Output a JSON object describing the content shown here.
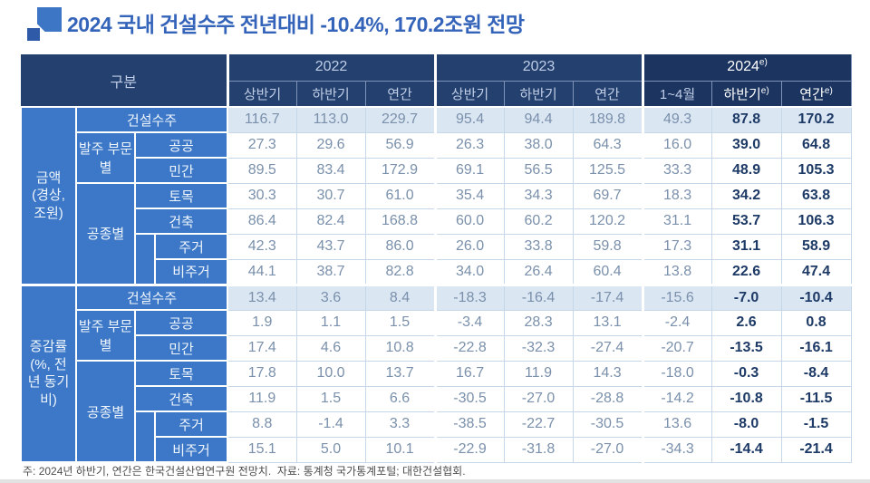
{
  "title": "2024 국내 건설수주 전년대비 -10.4%, 170.2조원 전망",
  "footnote": "주: 2024년 하반기, 연간은 한국건설산업연구원 전망치.  자료: 통계청 국가통계포털; 대한건설협회.",
  "colors": {
    "title_blue": "#3463BA",
    "header_navy": "#24406E",
    "header_navy_2024": "#1B3460",
    "label_blue": "#3C78C7",
    "summary_row_bg": "#DBE6F3",
    "value_text": "#7A90AB",
    "bold_value_text": "#1D3A66"
  },
  "chart_data": {
    "type": "table",
    "title": "2024 국내 건설수주 전년대비 -10.4%, 170.2조원 전망",
    "units": "금액: 경상, 조원 / 증감률: %, 전년동기비",
    "header": {
      "corner": "구분",
      "year_groups": [
        {
          "label": "2022",
          "sup": "",
          "subcols": [
            {
              "label": "상반기",
              "sup": ""
            },
            {
              "label": "하반기",
              "sup": ""
            },
            {
              "label": "연간",
              "sup": ""
            }
          ]
        },
        {
          "label": "2023",
          "sup": "",
          "subcols": [
            {
              "label": "상반기",
              "sup": ""
            },
            {
              "label": "하반기",
              "sup": ""
            },
            {
              "label": "연간",
              "sup": ""
            }
          ]
        },
        {
          "label": "2024",
          "sup": "e)",
          "subcols": [
            {
              "label": "1~4월",
              "sup": ""
            },
            {
              "label": "하반기",
              "sup": "e)"
            },
            {
              "label": "연간",
              "sup": "e)"
            }
          ]
        }
      ]
    },
    "sections": [
      {
        "group_label": "금액 (경상, 조원)",
        "rows": [
          {
            "label": "건설수주",
            "indent": false,
            "values": [
              "116.7",
              "113.0",
              "229.7",
              "95.4",
              "94.4",
              "189.8",
              "49.3",
              "87.8",
              "170.2"
            ]
          },
          {
            "parent": "발주 부문별",
            "parent_rowspan": 2,
            "label": "공공",
            "indent": false,
            "values": [
              "27.3",
              "29.6",
              "56.9",
              "26.3",
              "38.0",
              "64.3",
              "16.0",
              "39.0",
              "64.8"
            ]
          },
          {
            "label": "민간",
            "indent": false,
            "values": [
              "89.5",
              "83.4",
              "172.9",
              "69.1",
              "56.5",
              "125.5",
              "33.3",
              "48.9",
              "105.3"
            ]
          },
          {
            "parent": "공종별",
            "parent_rowspan": 4,
            "label": "토목",
            "indent": false,
            "values": [
              "30.3",
              "30.7",
              "61.0",
              "35.4",
              "34.3",
              "69.7",
              "18.3",
              "34.2",
              "63.8"
            ]
          },
          {
            "label": "건축",
            "indent": false,
            "values": [
              "86.4",
              "82.4",
              "168.8",
              "60.0",
              "60.2",
              "120.2",
              "31.1",
              "53.7",
              "106.3"
            ]
          },
          {
            "label": "주거",
            "indent": true,
            "values": [
              "42.3",
              "43.7",
              "86.0",
              "26.0",
              "33.8",
              "59.8",
              "17.3",
              "31.1",
              "58.9"
            ]
          },
          {
            "label": "비주거",
            "indent": true,
            "values": [
              "44.1",
              "38.7",
              "82.8",
              "34.0",
              "26.4",
              "60.4",
              "13.8",
              "22.6",
              "47.4"
            ]
          }
        ]
      },
      {
        "group_label": "증감률 (%, 전년 동기비)",
        "rows": [
          {
            "label": "건설수주",
            "indent": false,
            "values": [
              "13.4",
              "3.6",
              "8.4",
              "-18.3",
              "-16.4",
              "-17.4",
              "-15.6",
              "-7.0",
              "-10.4"
            ]
          },
          {
            "parent": "발주 부문별",
            "parent_rowspan": 2,
            "label": "공공",
            "indent": false,
            "values": [
              "1.9",
              "1.1",
              "1.5",
              "-3.4",
              "28.3",
              "13.1",
              "-2.4",
              "2.6",
              "0.8"
            ]
          },
          {
            "label": "민간",
            "indent": false,
            "values": [
              "17.4",
              "4.6",
              "10.8",
              "-22.8",
              "-32.3",
              "-27.4",
              "-20.7",
              "-13.5",
              "-16.1"
            ]
          },
          {
            "parent": "공종별",
            "parent_rowspan": 4,
            "label": "토목",
            "indent": false,
            "values": [
              "17.8",
              "10.0",
              "13.7",
              "16.7",
              "11.9",
              "14.3",
              "-18.0",
              "-0.3",
              "-8.4"
            ]
          },
          {
            "label": "건축",
            "indent": false,
            "values": [
              "11.9",
              "1.5",
              "6.6",
              "-30.5",
              "-27.0",
              "-28.8",
              "-14.2",
              "-10.8",
              "-11.5"
            ]
          },
          {
            "label": "주거",
            "indent": true,
            "values": [
              "8.8",
              "-1.4",
              "3.3",
              "-38.5",
              "-22.7",
              "-30.5",
              "13.6",
              "-8.0",
              "-1.5"
            ]
          },
          {
            "label": "비주거",
            "indent": true,
            "values": [
              "15.1",
              "5.0",
              "10.1",
              "-22.9",
              "-31.8",
              "-27.0",
              "-34.3",
              "-14.4",
              "-21.4"
            ]
          }
        ]
      }
    ]
  }
}
